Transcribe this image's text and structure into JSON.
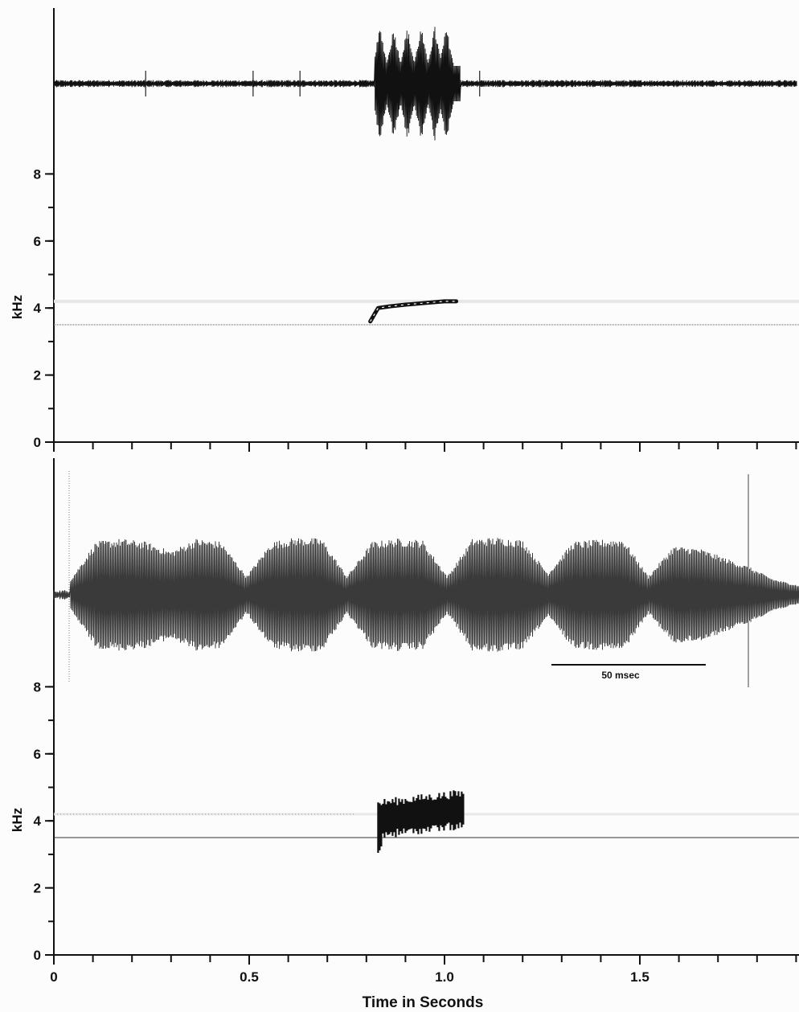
{
  "chart_data": [
    {
      "type": "spectrogram",
      "panel": "top",
      "ylabel": "kHz",
      "y_ticks": [
        0,
        2,
        4,
        6,
        8
      ],
      "ylim": [
        0,
        12
      ],
      "x_range": [
        0,
        1.92
      ],
      "waveform": {
        "baseline_noise": true,
        "call_start": 0.82,
        "call_end": 1.04,
        "pulses": [
          0.835,
          0.87,
          0.905,
          0.94,
          0.975,
          1.005
        ],
        "clicks": [
          0.235,
          0.51,
          0.63,
          1.09
        ]
      },
      "trace": {
        "points": [
          [
            0.81,
            3.6
          ],
          [
            0.82,
            3.8
          ],
          [
            0.83,
            4.0
          ],
          [
            0.86,
            4.05
          ],
          [
            0.9,
            4.1
          ],
          [
            0.95,
            4.15
          ],
          [
            1.0,
            4.2
          ],
          [
            1.03,
            4.2
          ]
        ]
      },
      "reference_line_khz": 3.5,
      "faint_band_khz": 4.2
    },
    {
      "type": "spectrogram",
      "panel": "bottom",
      "ylabel": "kHz",
      "y_ticks": [
        0,
        2,
        4,
        6,
        8
      ],
      "ylim": [
        0,
        12
      ],
      "xlabel": "Time  in  Seconds",
      "x_ticks": [
        0,
        0.5,
        1.0,
        1.5
      ],
      "x_tick_labels": [
        "0",
        "0.5",
        "1.0",
        "1.5"
      ],
      "x_range": [
        0,
        1.92
      ],
      "scale_bar_label": "50 msec",
      "waveform_expanded": {
        "note": "expanded view of the call",
        "envelope": [
          0.25,
          0.85,
          0.9,
          0.85,
          0.7,
          0.9,
          0.85,
          0.3,
          0.85,
          0.92,
          0.9,
          0.3,
          0.85,
          0.9,
          0.88,
          0.3,
          0.9,
          0.92,
          0.88,
          0.35,
          0.85,
          0.88,
          0.9,
          0.3,
          0.78,
          0.75,
          0.6,
          0.45,
          0.25,
          0.15
        ]
      },
      "trace": {
        "start": 0.83,
        "end": 1.05,
        "low_khz": 3.5,
        "high_khz": 4.6
      },
      "reference_line_khz": 3.5,
      "faint_band_khz": 4.2
    }
  ]
}
